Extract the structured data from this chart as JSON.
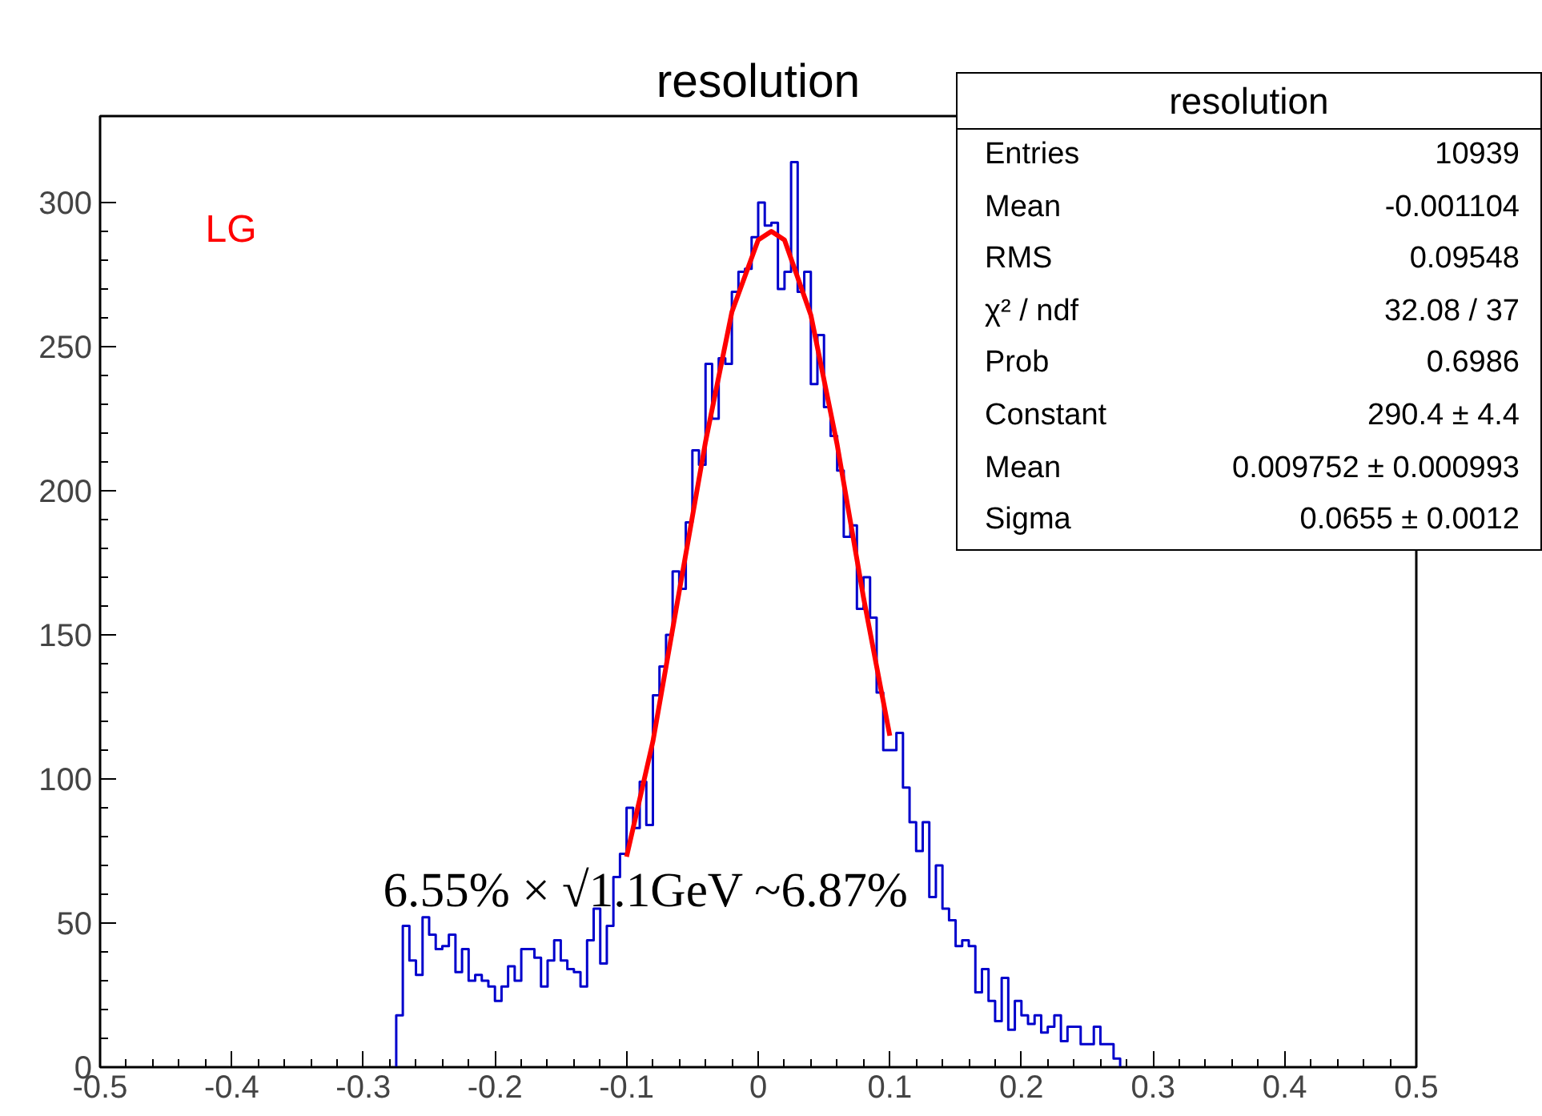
{
  "chart_data": {
    "type": "histogram",
    "title": "resolution",
    "xlim": [
      -0.5,
      0.5
    ],
    "ylim": [
      0,
      330
    ],
    "xticks": [
      -0.5,
      -0.4,
      -0.3,
      -0.2,
      -0.1,
      0,
      0.1,
      0.2,
      0.3,
      0.4,
      0.5
    ],
    "yticks": [
      0,
      50,
      100,
      150,
      200,
      250,
      300
    ],
    "bins": [
      -0.275,
      -0.27,
      -0.265,
      -0.26,
      -0.255,
      -0.25,
      -0.245,
      -0.24,
      -0.235,
      -0.23,
      -0.225,
      -0.22,
      -0.215,
      -0.21,
      -0.205,
      -0.2,
      -0.195,
      -0.19,
      -0.185,
      -0.18,
      -0.175,
      -0.17,
      -0.165,
      -0.16,
      -0.155,
      -0.15,
      -0.145,
      -0.14,
      -0.135,
      -0.13,
      -0.125,
      -0.12,
      -0.115,
      -0.11,
      -0.105,
      -0.1,
      -0.095,
      -0.09,
      -0.085,
      -0.08,
      -0.075,
      -0.07,
      -0.065,
      -0.06,
      -0.055,
      -0.05,
      -0.045,
      -0.04,
      -0.035,
      -0.03,
      -0.025,
      -0.02,
      -0.015,
      -0.01,
      -0.005,
      0,
      0.005,
      0.01,
      0.015,
      0.02,
      0.025,
      0.03,
      0.035,
      0.04,
      0.045,
      0.05,
      0.055,
      0.06,
      0.065,
      0.07,
      0.075,
      0.08,
      0.085,
      0.09,
      0.095,
      0.1,
      0.105,
      0.11,
      0.115,
      0.12,
      0.125,
      0.13,
      0.135,
      0.14,
      0.145,
      0.15,
      0.155,
      0.16,
      0.165,
      0.17,
      0.175,
      0.18,
      0.185,
      0.19,
      0.195,
      0.2,
      0.205,
      0.21,
      0.215,
      0.22,
      0.225,
      0.23,
      0.235,
      0.24,
      0.245,
      0.25,
      0.255,
      0.26,
      0.265,
      0.27,
      0.275
    ],
    "series": [
      {
        "color": "#0000cc",
        "values": [
          18,
          49,
          37,
          32,
          52,
          46,
          41,
          42,
          46,
          33,
          41,
          30,
          32,
          30,
          28,
          23,
          28,
          35,
          30,
          41,
          41,
          38,
          28,
          37,
          44,
          37,
          34,
          33,
          28,
          44,
          55,
          36,
          49,
          66,
          74,
          90,
          83,
          99,
          84,
          129,
          139,
          150,
          172,
          166,
          189,
          214,
          209,
          244,
          225,
          246,
          244,
          269,
          276,
          277,
          288,
          300,
          292,
          293,
          270,
          276,
          314,
          269,
          276,
          237,
          254,
          229,
          219,
          207,
          184,
          188,
          159,
          170,
          156,
          130,
          110,
          110,
          116,
          97,
          85,
          75,
          85,
          59,
          70,
          55,
          51,
          42,
          44,
          42,
          26,
          34,
          23,
          16,
          31,
          13,
          23,
          18,
          15,
          18,
          12,
          14,
          18,
          9,
          14,
          14,
          8,
          8,
          14,
          8,
          8,
          3
        ]
      },
      {
        "type": "line",
        "color": "#ff0000",
        "x": [
          -0.1,
          -0.08,
          -0.06,
          -0.04,
          -0.02,
          0,
          0.01,
          0.02,
          0.04,
          0.06,
          0.08,
          0.1
        ],
        "values": [
          73,
          113,
          165,
          217,
          262,
          287,
          290,
          287,
          261,
          216,
          163,
          115
        ]
      }
    ],
    "annotations": [
      "LG",
      "6.55% × √1.1GeV ~6.87%",
      "resolution",
      "Entries",
      "10939",
      "Mean",
      "-0.001104",
      "RMS",
      "0.09548",
      "χ² / ndf",
      "32.08 / 37",
      "Prob",
      "0.6986",
      "Constant",
      "290.4 ± 4.4",
      "Mean",
      "0.009752 ± 0.000993",
      "Sigma",
      "0.0655 ± 0.0012"
    ]
  }
}
